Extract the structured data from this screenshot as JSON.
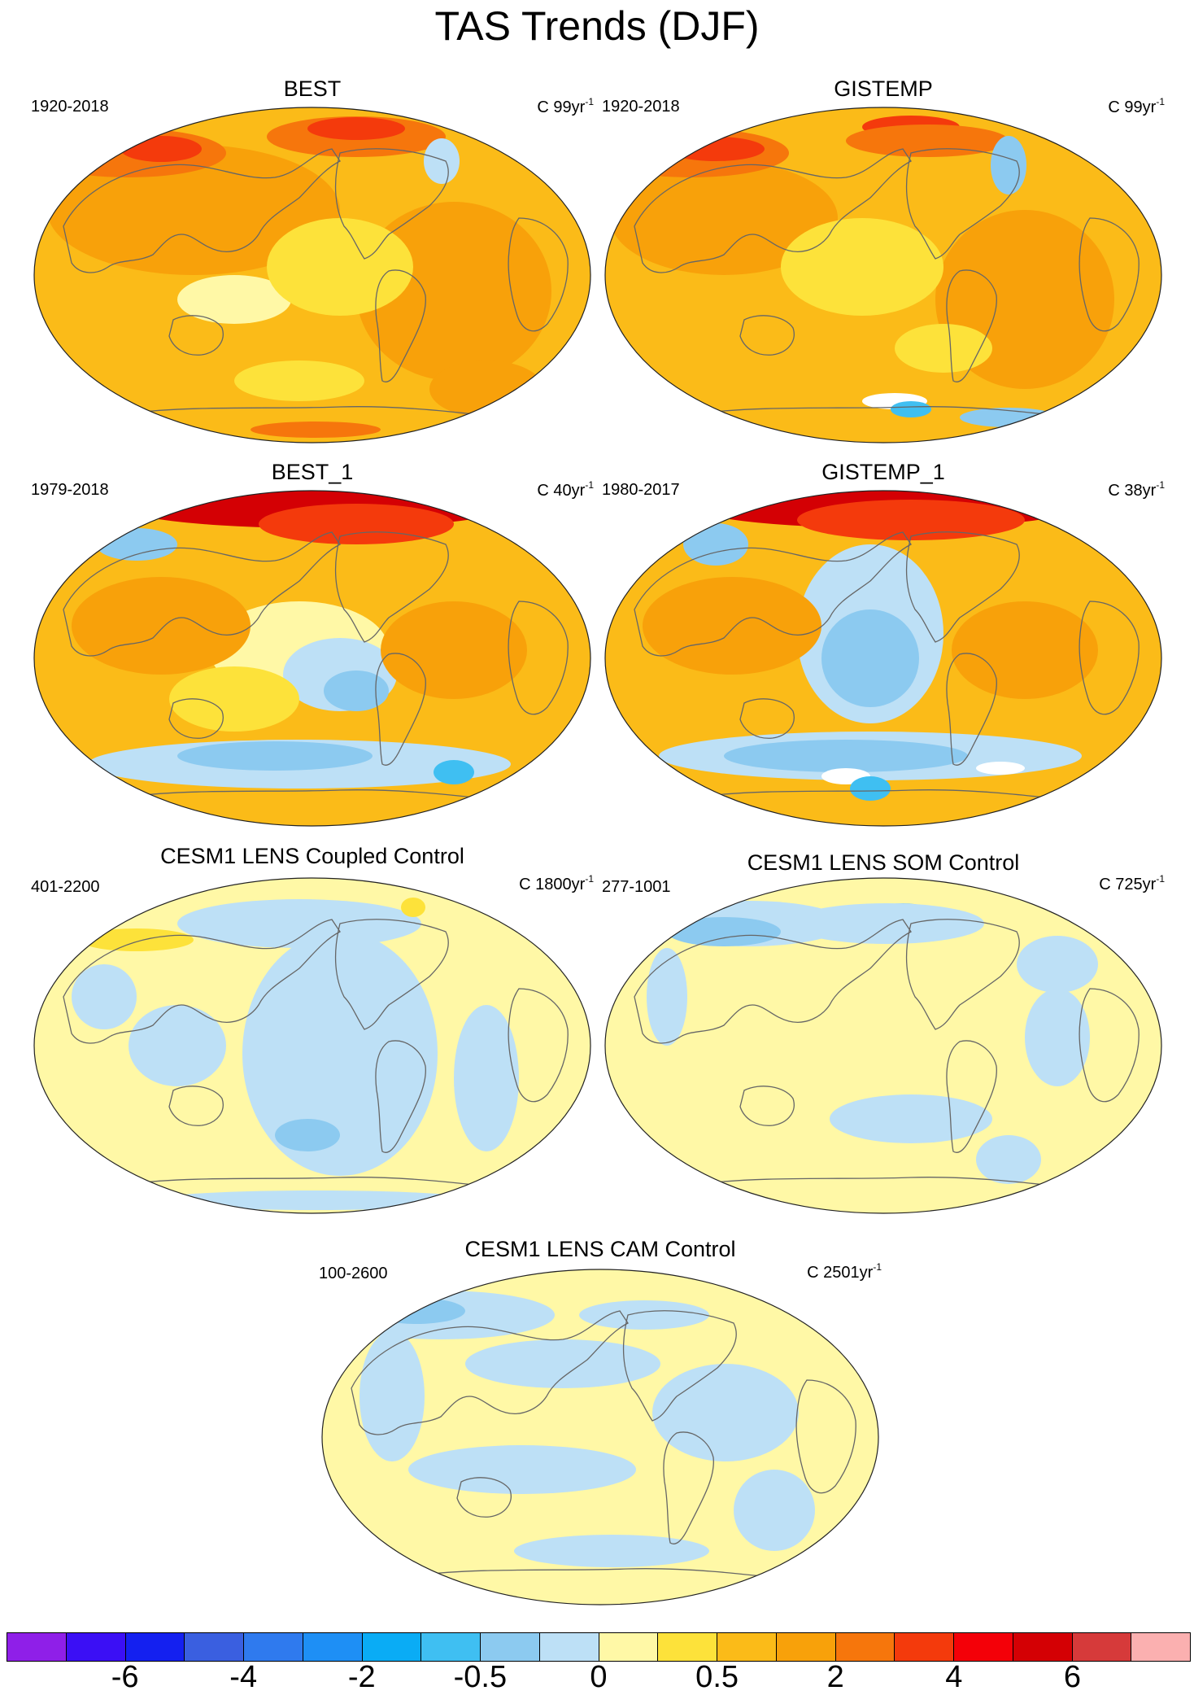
{
  "title": "TAS Trends (DJF)",
  "panels": [
    {
      "title": "BEST",
      "period": "1920-2018",
      "scale_text": "C 99yr",
      "scale_exp": "-1",
      "style": "warm_best"
    },
    {
      "title": "GISTEMP",
      "period": "1920-2018",
      "scale_text": "C 99yr",
      "scale_exp": "-1",
      "style": "warm_gis"
    },
    {
      "title": "BEST_1",
      "period": "1979-2018",
      "scale_text": "C 40yr",
      "scale_exp": "-1",
      "style": "recent_best"
    },
    {
      "title": "GISTEMP_1",
      "period": "1980-2017",
      "scale_text": "C 38yr",
      "scale_exp": "-1",
      "style": "recent_gis"
    },
    {
      "title": "CESM1 LENS Coupled Control",
      "period": "401-2200",
      "scale_text": "C 1800yr",
      "scale_exp": "-1",
      "style": "control_coupled"
    },
    {
      "title": "CESM1 LENS SOM Control",
      "period": "277-1001",
      "scale_text": "C 725yr",
      "scale_exp": "-1",
      "style": "control_som"
    },
    {
      "title": "CESM1 LENS CAM Control",
      "period": "100-2600",
      "scale_text": "C 2501yr",
      "scale_exp": "-1",
      "style": "control_cam"
    }
  ],
  "colorbar": {
    "colors": [
      "#8f1fe8",
      "#3b0ff5",
      "#1420f0",
      "#3a5fe0",
      "#2f7aee",
      "#1e8ff5",
      "#0aacf5",
      "#3fbff2",
      "#8ccaf0",
      "#bde0f6",
      "#fff8a6",
      "#fde23a",
      "#fbbb18",
      "#f8a10a",
      "#f6760c",
      "#f43a0c",
      "#f40008",
      "#d40004",
      "#d63a3a",
      "#fbb0b0"
    ],
    "tick_labels": [
      "-6",
      "-4",
      "-2",
      "-0.5",
      "0",
      "0.5",
      "2",
      "4",
      "6"
    ]
  }
}
